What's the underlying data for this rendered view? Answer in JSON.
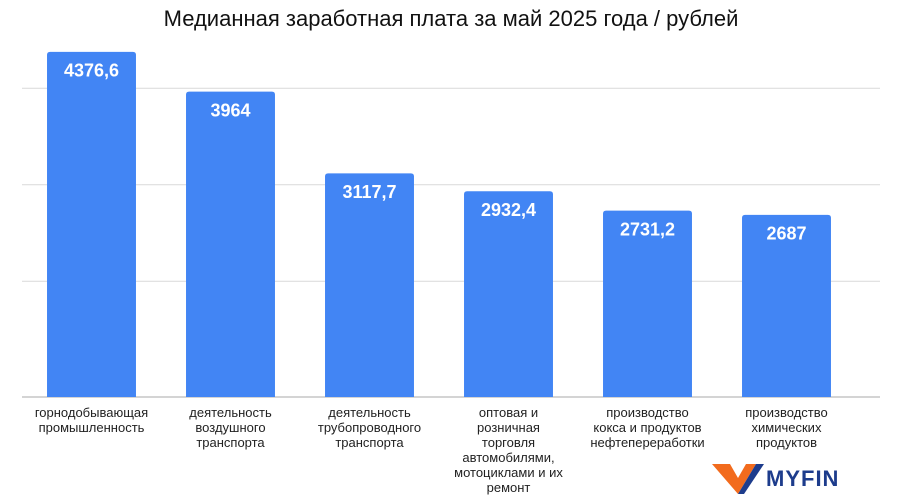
{
  "chart_data": {
    "type": "bar",
    "title": "Медианная заработная плата за май 2025 года / рублей",
    "categories": [
      "горнодобывающая\nпромышленность",
      "деятельность\nвоздушного\nтранспорта",
      "деятельность\nтрубопроводного\nтранспорта",
      "оптовая и\nрозничная\nторговля\nавтомобилями,\nмотоциклами и их\nремонт",
      "производство\nкокса и продуктов\nнефтепереработки",
      "производство\nхимических\nпродуктов"
    ],
    "values": [
      4376.6,
      3964,
      3117.7,
      2932.4,
      2731.2,
      2687
    ],
    "value_labels": [
      "4376,6",
      "3964",
      "3117,7",
      "2932,4",
      "2731,2",
      "2687"
    ],
    "color": "#4285f4",
    "ylim": [
      800,
      4500
    ],
    "yticks": [
      2000,
      3000,
      4000
    ],
    "grid": true
  },
  "logo": {
    "text": "MYFIN"
  }
}
